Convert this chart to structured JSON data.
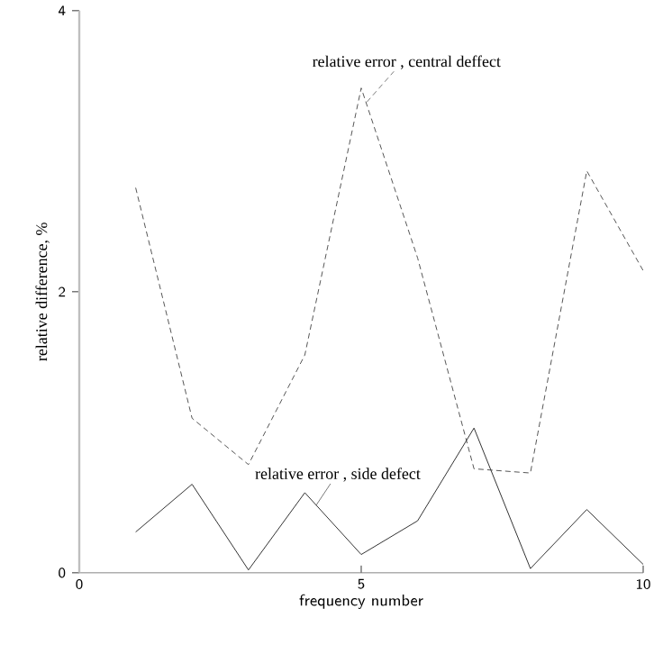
{
  "chart_data": {
    "type": "line",
    "xlabel": "frequency number",
    "ylabel": "relative difference, %",
    "x": [
      1,
      2,
      3,
      4,
      5,
      6,
      7,
      8,
      9,
      10
    ],
    "series": [
      {
        "color": "#555555",
        "line_style": "dashed",
        "values": [
          2.74,
          1.1,
          0.77,
          1.55,
          3.45,
          2.24,
          0.74,
          0.71,
          2.86,
          2.15
        ]
      },
      {
        "color": "#333333",
        "line_style": "solid",
        "values": [
          0.29,
          0.63,
          0.02,
          0.57,
          0.13,
          0.37,
          1.03,
          0.03,
          0.45,
          0.06
        ]
      }
    ],
    "annotations": [
      {
        "text": "relative error , central deffect",
        "x": 5.1,
        "y": 3.35
      },
      {
        "text": "relative error , side defect",
        "x": 4.2,
        "y": 0.48
      }
    ],
    "xlim": [
      0,
      10
    ],
    "ylim": [
      0,
      4
    ],
    "xticks": [
      0,
      5,
      10
    ],
    "yticks": [
      0,
      2,
      4
    ],
    "grid": false,
    "marker": "none"
  }
}
